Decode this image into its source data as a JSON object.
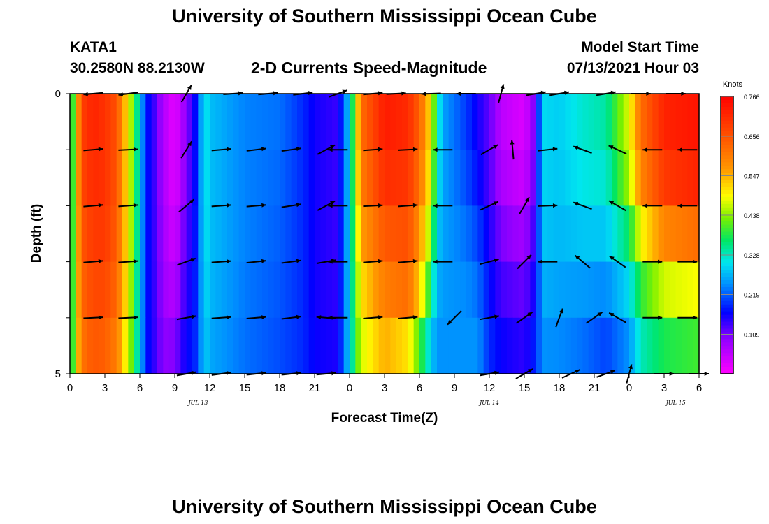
{
  "header": {
    "title": "University of Southern Mississippi Ocean Cube",
    "station": "KATA1",
    "coords": "30.2580N  88.2130W",
    "product": "2-D Currents Speed-Magnitude",
    "model_start_label": "Model Start Time",
    "model_start_value": "07/13/2021 Hour 03"
  },
  "footer": {
    "title": "University of Southern Mississippi Ocean Cube"
  },
  "chart_data": {
    "type": "heatmap",
    "title": "2-D Currents Speed-Magnitude",
    "xlabel": "Forecast Time(Z)",
    "ylabel": "Depth (ft)",
    "colorbar_label": "Knots",
    "colorbar_ticks": [
      "0.766",
      "0.656",
      "0.547",
      "0.438",
      "0.328",
      "0.219",
      "0.109"
    ],
    "colorbar_range": [
      0,
      0.766
    ],
    "x_tick_labels": [
      "0",
      "3",
      "6",
      "9",
      "12",
      "15",
      "18",
      "21",
      "0",
      "3",
      "6",
      "9",
      "12",
      "15",
      "18",
      "21",
      "0",
      "3",
      "6"
    ],
    "x_range_hours": [
      0,
      54
    ],
    "date_labels": [
      {
        "text": "JUL 13",
        "hour": 11
      },
      {
        "text": "JUL 14",
        "hour": 36
      },
      {
        "text": "JUL 15",
        "hour": 52
      }
    ],
    "y_tick_labels": [
      "0",
      "5"
    ],
    "ylim": [
      0,
      5
    ],
    "depths": [
      0.5,
      1.5,
      2.5,
      3.5,
      4.5
    ],
    "columns_per_hour": 2,
    "speed_profiles_by_hour": [
      [
        0,
        0.3,
        0.3,
        0.3,
        0.3,
        0.3,
        0.3
      ],
      [
        0.5,
        0.5,
        0.5,
        0.5,
        0.5,
        0.5,
        0.5
      ],
      [
        1,
        0.68,
        0.68,
        0.66,
        0.64,
        0.62,
        0.6
      ],
      [
        2,
        0.72,
        0.72,
        0.7,
        0.68,
        0.66,
        0.64
      ],
      [
        3,
        0.7,
        0.7,
        0.7,
        0.68,
        0.66,
        0.62
      ],
      [
        4,
        0.66,
        0.66,
        0.65,
        0.64,
        0.62,
        0.58
      ],
      [
        5,
        0.5,
        0.5,
        0.5,
        0.5,
        0.48,
        0.46
      ],
      [
        5.5,
        0.4,
        0.4,
        0.4,
        0.4,
        0.38,
        0.38
      ],
      [
        6,
        0.3,
        0.3,
        0.3,
        0.3,
        0.3,
        0.3
      ],
      [
        6.5,
        0.18,
        0.18,
        0.18,
        0.18,
        0.18,
        0.18
      ],
      [
        7,
        0.16,
        0.16,
        0.16,
        0.16,
        0.16,
        0.16
      ],
      [
        8,
        0.07,
        0.07,
        0.08,
        0.08,
        0.09,
        0.1
      ],
      [
        9,
        0.02,
        0.02,
        0.03,
        0.05,
        0.08,
        0.12
      ],
      [
        10,
        0.1,
        0.1,
        0.12,
        0.14,
        0.16,
        0.18
      ],
      [
        10.5,
        0.14,
        0.14,
        0.15,
        0.16,
        0.17,
        0.18
      ],
      [
        11,
        0.2,
        0.2,
        0.2,
        0.2,
        0.2,
        0.21
      ],
      [
        11.5,
        0.32,
        0.32,
        0.32,
        0.31,
        0.3,
        0.29
      ],
      [
        12,
        0.28,
        0.28,
        0.28,
        0.28,
        0.27,
        0.26
      ],
      [
        15,
        0.24,
        0.24,
        0.24,
        0.24,
        0.23,
        0.23
      ],
      [
        18,
        0.23,
        0.23,
        0.22,
        0.22,
        0.21,
        0.21
      ],
      [
        20,
        0.19,
        0.19,
        0.19,
        0.19,
        0.19,
        0.19
      ],
      [
        21,
        0.16,
        0.16,
        0.16,
        0.16,
        0.16,
        0.17
      ],
      [
        23,
        0.14,
        0.14,
        0.14,
        0.14,
        0.15,
        0.16
      ],
      [
        24,
        0.3,
        0.3,
        0.3,
        0.3,
        0.3,
        0.3
      ],
      [
        24.5,
        0.46,
        0.46,
        0.44,
        0.42,
        0.4,
        0.38
      ],
      [
        25,
        0.62,
        0.62,
        0.58,
        0.54,
        0.48,
        0.46
      ],
      [
        27,
        0.73,
        0.73,
        0.68,
        0.62,
        0.58,
        0.52
      ],
      [
        29,
        0.71,
        0.71,
        0.68,
        0.64,
        0.6,
        0.42
      ],
      [
        30,
        0.64,
        0.64,
        0.6,
        0.56,
        0.5,
        0.32
      ],
      [
        31,
        0.5,
        0.5,
        0.46,
        0.4,
        0.32,
        0.26
      ],
      [
        31.5,
        0.34,
        0.34,
        0.3,
        0.28,
        0.26,
        0.24
      ],
      [
        32,
        0.26,
        0.26,
        0.26,
        0.26,
        0.25,
        0.25
      ],
      [
        34,
        0.2,
        0.2,
        0.22,
        0.24,
        0.25,
        0.25
      ],
      [
        35,
        0.16,
        0.16,
        0.19,
        0.22,
        0.24,
        0.26
      ],
      [
        36,
        0.12,
        0.12,
        0.14,
        0.17,
        0.18,
        0.2
      ],
      [
        37,
        0.06,
        0.06,
        0.09,
        0.12,
        0.15,
        0.18
      ],
      [
        39,
        0.03,
        0.03,
        0.06,
        0.1,
        0.13,
        0.16
      ],
      [
        40,
        0.12,
        0.12,
        0.14,
        0.16,
        0.18,
        0.2
      ],
      [
        40.5,
        0.3,
        0.3,
        0.29,
        0.28,
        0.26,
        0.24
      ],
      [
        42,
        0.29,
        0.29,
        0.28,
        0.27,
        0.25,
        0.24
      ],
      [
        44,
        0.32,
        0.32,
        0.3,
        0.27,
        0.24,
        0.22
      ],
      [
        46,
        0.34,
        0.34,
        0.3,
        0.27,
        0.22,
        0.19
      ],
      [
        48,
        0.48,
        0.48,
        0.42,
        0.32,
        0.28,
        0.22
      ],
      [
        49,
        0.62,
        0.62,
        0.56,
        0.42,
        0.36,
        0.3
      ],
      [
        51,
        0.72,
        0.72,
        0.66,
        0.52,
        0.42,
        0.34
      ],
      [
        54,
        0.74,
        0.74,
        0.7,
        0.54,
        0.44,
        0.36
      ]
    ],
    "vector_rows_depth": [
      0,
      1,
      2,
      3,
      4,
      5
    ],
    "vectors": [
      [
        {
          "hour": 2,
          "angle": 175,
          "speed": 0.7
        },
        {
          "hour": 5,
          "angle": 172,
          "speed": 0.62
        },
        {
          "hour": 10,
          "angle": -60,
          "speed": 0.08
        },
        {
          "hour": 14,
          "angle": -4,
          "speed": 0.28
        },
        {
          "hour": 17,
          "angle": -5,
          "speed": 0.26
        },
        {
          "hour": 20,
          "angle": -7,
          "speed": 0.22
        },
        {
          "hour": 23,
          "angle": -20,
          "speed": 0.15
        },
        {
          "hour": 26,
          "angle": -5,
          "speed": 0.68
        },
        {
          "hour": 28,
          "angle": -3,
          "speed": 0.72
        },
        {
          "hour": 31,
          "angle": 178,
          "speed": 0.5
        },
        {
          "hour": 34,
          "angle": 180,
          "speed": 0.2
        },
        {
          "hour": 37,
          "angle": -75,
          "speed": 0.06
        },
        {
          "hour": 40,
          "angle": -10,
          "speed": 0.28
        },
        {
          "hour": 42,
          "angle": -10,
          "speed": 0.3
        },
        {
          "hour": 46,
          "angle": -10,
          "speed": 0.3
        },
        {
          "hour": 49,
          "angle": 0,
          "speed": 0.6
        },
        {
          "hour": 52,
          "angle": 0,
          "speed": 0.72
        }
      ],
      [
        {
          "hour": 2,
          "angle": -5,
          "speed": 0.7
        },
        {
          "hour": 5,
          "angle": -3,
          "speed": 0.66
        },
        {
          "hour": 10,
          "angle": -58,
          "speed": 0.06
        },
        {
          "hour": 13,
          "angle": -5,
          "speed": 0.3
        },
        {
          "hour": 16,
          "angle": -7,
          "speed": 0.28
        },
        {
          "hour": 19,
          "angle": -8,
          "speed": 0.25
        },
        {
          "hour": 22,
          "angle": -28,
          "speed": 0.19
        },
        {
          "hour": 23,
          "angle": 180,
          "speed": 0.28
        },
        {
          "hour": 26,
          "angle": -4,
          "speed": 0.68
        },
        {
          "hour": 29,
          "angle": -3,
          "speed": 0.72
        },
        {
          "hour": 32,
          "angle": 180,
          "speed": 0.58
        },
        {
          "hour": 36,
          "angle": -30,
          "speed": 0.12
        },
        {
          "hour": 38,
          "angle": -95,
          "speed": 0.05
        },
        {
          "hour": 41,
          "angle": -6,
          "speed": 0.29
        },
        {
          "hour": 44,
          "angle": 200,
          "speed": 0.32
        },
        {
          "hour": 47,
          "angle": 205,
          "speed": 0.4
        },
        {
          "hour": 50,
          "angle": 180,
          "speed": 0.7
        },
        {
          "hour": 53,
          "angle": 180,
          "speed": 0.72
        }
      ],
      [
        {
          "hour": 2,
          "angle": -5,
          "speed": 0.7
        },
        {
          "hour": 5,
          "angle": -4,
          "speed": 0.66
        },
        {
          "hour": 10,
          "angle": -40,
          "speed": 0.08
        },
        {
          "hour": 13,
          "angle": -4,
          "speed": 0.3
        },
        {
          "hour": 16,
          "angle": -5,
          "speed": 0.28
        },
        {
          "hour": 19,
          "angle": -9,
          "speed": 0.24
        },
        {
          "hour": 22,
          "angle": -28,
          "speed": 0.19
        },
        {
          "hour": 23,
          "angle": 180,
          "speed": 0.28
        },
        {
          "hour": 26,
          "angle": -3,
          "speed": 0.66
        },
        {
          "hour": 29,
          "angle": -4,
          "speed": 0.68
        },
        {
          "hour": 32,
          "angle": 180,
          "speed": 0.58
        },
        {
          "hour": 36,
          "angle": -25,
          "speed": 0.12
        },
        {
          "hour": 39,
          "angle": -60,
          "speed": 0.1
        },
        {
          "hour": 41,
          "angle": -2,
          "speed": 0.28
        },
        {
          "hour": 44,
          "angle": 200,
          "speed": 0.32
        },
        {
          "hour": 47,
          "angle": 210,
          "speed": 0.36
        },
        {
          "hour": 50,
          "angle": 180,
          "speed": 0.7
        },
        {
          "hour": 53,
          "angle": 180,
          "speed": 0.72
        }
      ],
      [
        {
          "hour": 2,
          "angle": -5,
          "speed": 0.68
        },
        {
          "hour": 5,
          "angle": -4,
          "speed": 0.64
        },
        {
          "hour": 10,
          "angle": -20,
          "speed": 0.09
        },
        {
          "hour": 13,
          "angle": -4,
          "speed": 0.3
        },
        {
          "hour": 16,
          "angle": -6,
          "speed": 0.28
        },
        {
          "hour": 19,
          "angle": -8,
          "speed": 0.24
        },
        {
          "hour": 22,
          "angle": -10,
          "speed": 0.18
        },
        {
          "hour": 23,
          "angle": 180,
          "speed": 0.28
        },
        {
          "hour": 26,
          "angle": -5,
          "speed": 0.64
        },
        {
          "hour": 29,
          "angle": -5,
          "speed": 0.66
        },
        {
          "hour": 32,
          "angle": 180,
          "speed": 0.56
        },
        {
          "hour": 36,
          "angle": -15,
          "speed": 0.18
        },
        {
          "hour": 39,
          "angle": -45,
          "speed": 0.12
        },
        {
          "hour": 41,
          "angle": 180,
          "speed": 0.26
        },
        {
          "hour": 44,
          "angle": 220,
          "speed": 0.3
        },
        {
          "hour": 47,
          "angle": 215,
          "speed": 0.32
        },
        {
          "hour": 50,
          "angle": 0,
          "speed": 0.54
        },
        {
          "hour": 53,
          "angle": 0,
          "speed": 0.56
        }
      ],
      [
        {
          "hour": 2,
          "angle": -3,
          "speed": 0.66
        },
        {
          "hour": 5,
          "angle": -3,
          "speed": 0.62
        },
        {
          "hour": 10,
          "angle": -10,
          "speed": 0.12
        },
        {
          "hour": 13,
          "angle": -4,
          "speed": 0.3
        },
        {
          "hour": 16,
          "angle": -5,
          "speed": 0.28
        },
        {
          "hour": 19,
          "angle": -7,
          "speed": 0.25
        },
        {
          "hour": 22,
          "angle": 185,
          "speed": 0.2
        },
        {
          "hour": 23,
          "angle": 180,
          "speed": 0.28
        },
        {
          "hour": 26,
          "angle": -5,
          "speed": 0.58
        },
        {
          "hour": 29,
          "angle": -5,
          "speed": 0.6
        },
        {
          "hour": 33,
          "angle": 135,
          "speed": 0.48
        },
        {
          "hour": 36,
          "angle": -10,
          "speed": 0.2
        },
        {
          "hour": 39,
          "angle": -35,
          "speed": 0.14
        },
        {
          "hour": 42,
          "angle": -70,
          "speed": 0.3
        },
        {
          "hour": 45,
          "angle": -35,
          "speed": 0.22
        },
        {
          "hour": 47,
          "angle": 210,
          "speed": 0.2
        },
        {
          "hour": 50,
          "angle": 0,
          "speed": 0.44
        },
        {
          "hour": 53,
          "angle": 0,
          "speed": 0.46
        }
      ],
      [
        {
          "hour": 10,
          "angle": -10,
          "speed": 0.18
        },
        {
          "hour": 13,
          "angle": -8,
          "speed": 0.26
        },
        {
          "hour": 16,
          "angle": -6,
          "speed": 0.24
        },
        {
          "hour": 19,
          "angle": -6,
          "speed": 0.23
        },
        {
          "hour": 22,
          "angle": -5,
          "speed": 0.22
        },
        {
          "hour": 36,
          "angle": -10,
          "speed": 0.22
        },
        {
          "hour": 39,
          "angle": -30,
          "speed": 0.2
        },
        {
          "hour": 43,
          "angle": -25,
          "speed": 0.24
        },
        {
          "hour": 46,
          "angle": -20,
          "speed": 0.26
        },
        {
          "hour": 48,
          "angle": -75,
          "speed": 0.24
        },
        {
          "hour": 51,
          "angle": 0,
          "speed": 0.4
        },
        {
          "hour": 54,
          "angle": 0,
          "speed": 0.42
        }
      ]
    ]
  }
}
